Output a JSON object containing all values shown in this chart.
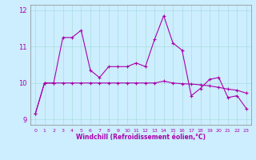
{
  "title": "",
  "xlabel": "Windchill (Refroidissement éolien,°C)",
  "background_color": "#cceeff",
  "line_color": "#aa00aa",
  "xlim": [
    -0.5,
    23.5
  ],
  "ylim": [
    8.85,
    12.15
  ],
  "yticks": [
    9,
    10,
    11,
    12
  ],
  "xticks": [
    0,
    1,
    2,
    3,
    4,
    5,
    6,
    7,
    8,
    9,
    10,
    11,
    12,
    13,
    14,
    15,
    16,
    17,
    18,
    19,
    20,
    21,
    22,
    23
  ],
  "series1_x": [
    0,
    1,
    2,
    3,
    4,
    5,
    6,
    7,
    8,
    9,
    10,
    11,
    12,
    13,
    14,
    15,
    16,
    17,
    18,
    19,
    20,
    21,
    22,
    23
  ],
  "series1_y": [
    9.15,
    10.0,
    10.0,
    11.25,
    11.25,
    11.45,
    10.35,
    10.15,
    10.45,
    10.45,
    10.45,
    10.55,
    10.45,
    11.2,
    11.85,
    11.1,
    10.9,
    9.65,
    9.85,
    10.1,
    10.15,
    9.6,
    9.65,
    9.3
  ],
  "series2_x": [
    0,
    1,
    2,
    3,
    4,
    5,
    6,
    7,
    8,
    9,
    10,
    11,
    12,
    13,
    14,
    15,
    16,
    17,
    18,
    19,
    20,
    21,
    22,
    23
  ],
  "series2_y": [
    9.15,
    10.0,
    10.0,
    10.0,
    10.0,
    10.0,
    10.0,
    10.0,
    10.0,
    10.0,
    10.0,
    10.0,
    10.0,
    10.0,
    10.05,
    10.0,
    9.98,
    9.97,
    9.95,
    9.92,
    9.88,
    9.83,
    9.8,
    9.72
  ]
}
